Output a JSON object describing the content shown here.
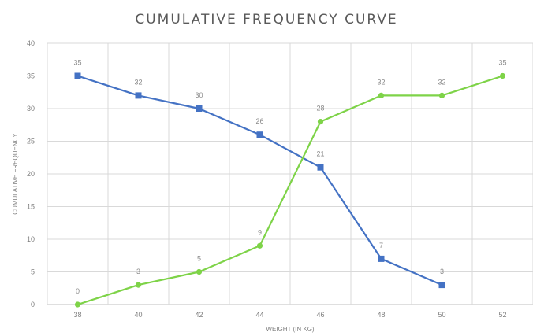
{
  "chart_data": {
    "type": "line",
    "title": "CUMULATIVE FREQUENCY CURVE",
    "xlabel": "WEIGHT (IN KG)",
    "ylabel": "CUMULATIVE FREQUENCY",
    "categories": [
      "38",
      "40",
      "42",
      "44",
      "46",
      "48",
      "50",
      "52"
    ],
    "ylim": [
      0,
      40
    ],
    "yticks": [
      0,
      5,
      10,
      15,
      20,
      25,
      30,
      35,
      40
    ],
    "grid": true,
    "legend": "none",
    "series": [
      {
        "color": "#4472c4",
        "marker": "square",
        "values": [
          35,
          32,
          30,
          26,
          21,
          7,
          3,
          null
        ],
        "labels": [
          "35",
          "32",
          "30",
          "26",
          "21",
          "7",
          "3",
          ""
        ]
      },
      {
        "color": "#7ed348",
        "marker": "circle",
        "values": [
          0,
          3,
          5,
          9,
          28,
          32,
          32,
          35
        ],
        "labels": [
          "0",
          "3",
          "5",
          "9",
          "28",
          "32",
          "32",
          "35"
        ]
      }
    ]
  }
}
